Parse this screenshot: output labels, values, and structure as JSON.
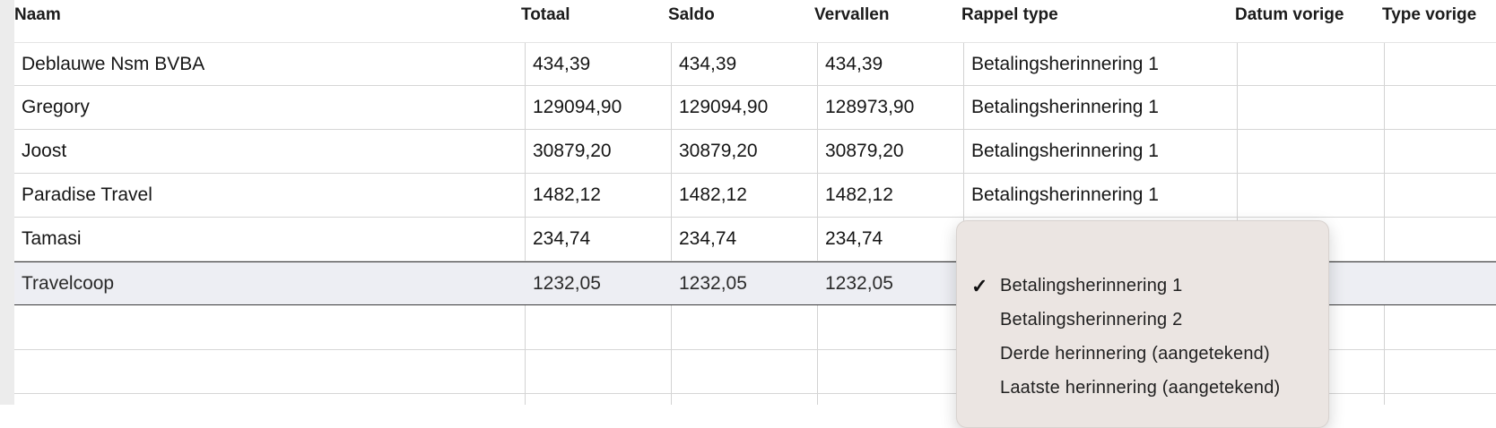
{
  "columns": {
    "naam": "Naam",
    "totaal": "Totaal",
    "saldo": "Saldo",
    "vervallen": "Vervallen",
    "rappel_type": "Rappel type",
    "datum_vorige": "Datum vorige",
    "type_vorige": "Type vorige"
  },
  "rows": [
    {
      "naam": "Deblauwe Nsm BVBA",
      "totaal": "434,39",
      "saldo": "434,39",
      "vervallen": "434,39",
      "rappel_type": "Betalingsherinnering 1"
    },
    {
      "naam": "Gregory",
      "totaal": "129094,90",
      "saldo": "129094,90",
      "vervallen": "128973,90",
      "rappel_type": "Betalingsherinnering 1"
    },
    {
      "naam": "Joost",
      "totaal": "30879,20",
      "saldo": "30879,20",
      "vervallen": "30879,20",
      "rappel_type": "Betalingsherinnering 1"
    },
    {
      "naam": "Paradise Travel",
      "totaal": "1482,12",
      "saldo": "1482,12",
      "vervallen": "1482,12",
      "rappel_type": "Betalingsherinnering 1"
    },
    {
      "naam": "Tamasi",
      "totaal": "234,74",
      "saldo": "234,74",
      "vervallen": "234,74",
      "rappel_type": ""
    },
    {
      "naam": "Travelcoop",
      "totaal": "1232,05",
      "saldo": "1232,05",
      "vervallen": "1232,05",
      "rappel_type": ""
    }
  ],
  "dropdown": {
    "check_glyph": "✓",
    "options": [
      {
        "label": "Betalingsherinnering 1",
        "selected": true
      },
      {
        "label": "Betalingsherinnering 2",
        "selected": false
      },
      {
        "label": "Derde herinnering (aangetekend)",
        "selected": false
      },
      {
        "label": "Laatste herinnering (aangetekend)",
        "selected": false
      }
    ]
  },
  "colors": {
    "selected_row_bg": "#edeef3",
    "menu_bg": "#ebe5e2"
  }
}
